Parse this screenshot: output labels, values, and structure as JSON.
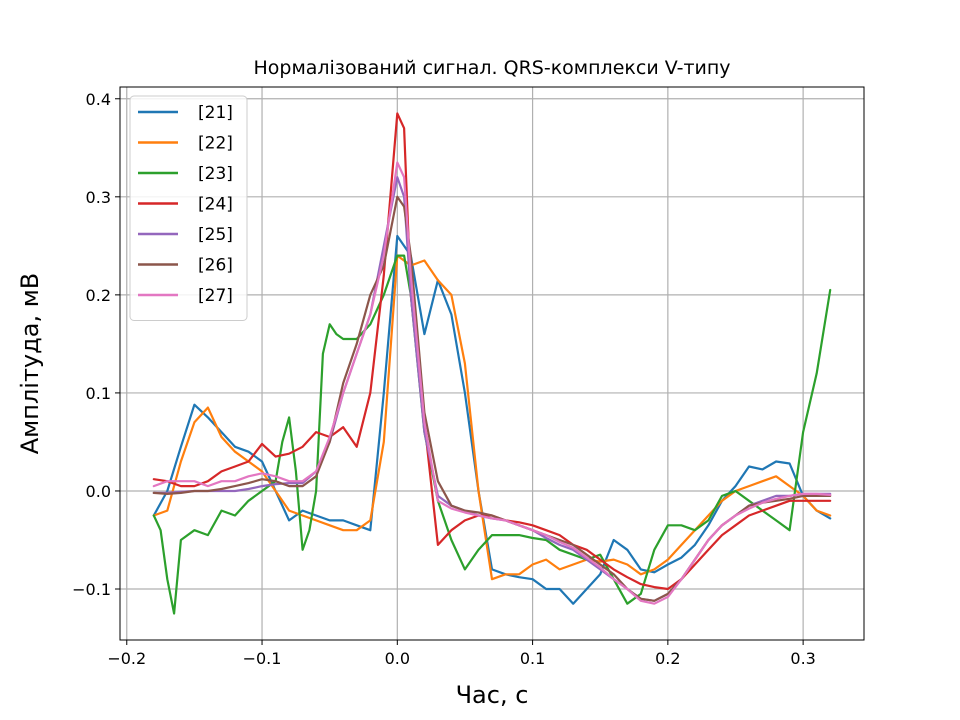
{
  "chart_data": {
    "type": "line",
    "title": "Нормалізований сигнал. QRS-комплекси V-типу",
    "xlabel": "Час, с",
    "ylabel": "Амплітуда, мВ",
    "xlim": [
      -0.205,
      0.345
    ],
    "ylim": [
      -0.152,
      0.412
    ],
    "xticks": [
      -0.2,
      -0.1,
      0.0,
      0.1,
      0.2,
      0.3
    ],
    "xtick_labels": [
      "−0.2",
      "−0.1",
      "0.0",
      "0.1",
      "0.2",
      "0.3"
    ],
    "yticks": [
      -0.1,
      0.0,
      0.1,
      0.2,
      0.3,
      0.4
    ],
    "ytick_labels": [
      "−0.1",
      "0.0",
      "0.1",
      "0.2",
      "0.3",
      "0.4"
    ],
    "grid": true,
    "legend": "top-left",
    "series": [
      {
        "name": "[21]",
        "color": "#1f77b4",
        "x": [
          -0.18,
          -0.17,
          -0.16,
          -0.15,
          -0.14,
          -0.13,
          -0.12,
          -0.11,
          -0.1,
          -0.09,
          -0.08,
          -0.07,
          -0.06,
          -0.05,
          -0.04,
          -0.03,
          -0.02,
          -0.01,
          0.0,
          0.01,
          0.02,
          0.03,
          0.04,
          0.05,
          0.06,
          0.07,
          0.08,
          0.09,
          0.1,
          0.11,
          0.12,
          0.13,
          0.14,
          0.15,
          0.16,
          0.17,
          0.18,
          0.19,
          0.2,
          0.21,
          0.22,
          0.23,
          0.24,
          0.25,
          0.26,
          0.27,
          0.28,
          0.29,
          0.3,
          0.31,
          0.32
        ],
        "y": [
          -0.025,
          0.0,
          0.045,
          0.088,
          0.075,
          0.06,
          0.045,
          0.04,
          0.03,
          0.0,
          -0.03,
          -0.02,
          -0.025,
          -0.03,
          -0.03,
          -0.035,
          -0.04,
          0.1,
          0.26,
          0.24,
          0.16,
          0.215,
          0.18,
          0.1,
          0.0,
          -0.08,
          -0.085,
          -0.088,
          -0.09,
          -0.1,
          -0.1,
          -0.115,
          -0.1,
          -0.085,
          -0.05,
          -0.06,
          -0.08,
          -0.083,
          -0.075,
          -0.068,
          -0.055,
          -0.035,
          -0.01,
          0.005,
          0.025,
          0.022,
          0.03,
          0.028,
          -0.005,
          -0.02,
          -0.028
        ]
      },
      {
        "name": "[22]",
        "color": "#ff7f0e",
        "x": [
          -0.18,
          -0.17,
          -0.16,
          -0.15,
          -0.14,
          -0.13,
          -0.12,
          -0.11,
          -0.1,
          -0.09,
          -0.08,
          -0.07,
          -0.06,
          -0.05,
          -0.04,
          -0.03,
          -0.02,
          -0.01,
          0.0,
          0.01,
          0.02,
          0.03,
          0.04,
          0.05,
          0.06,
          0.07,
          0.08,
          0.09,
          0.1,
          0.11,
          0.12,
          0.13,
          0.14,
          0.15,
          0.16,
          0.17,
          0.18,
          0.19,
          0.2,
          0.21,
          0.22,
          0.23,
          0.24,
          0.25,
          0.26,
          0.27,
          0.28,
          0.29,
          0.3,
          0.31,
          0.32
        ],
        "y": [
          -0.025,
          -0.02,
          0.03,
          0.07,
          0.085,
          0.055,
          0.04,
          0.03,
          0.02,
          0.0,
          -0.02,
          -0.025,
          -0.03,
          -0.035,
          -0.04,
          -0.04,
          -0.03,
          0.05,
          0.24,
          0.23,
          0.235,
          0.215,
          0.2,
          0.13,
          0.0,
          -0.09,
          -0.085,
          -0.085,
          -0.075,
          -0.07,
          -0.08,
          -0.075,
          -0.07,
          -0.072,
          -0.07,
          -0.075,
          -0.085,
          -0.08,
          -0.07,
          -0.055,
          -0.04,
          -0.025,
          -0.01,
          0.0,
          0.005,
          0.01,
          0.015,
          0.005,
          -0.005,
          -0.02,
          -0.025
        ]
      },
      {
        "name": "[23]",
        "color": "#2ca02c",
        "x": [
          -0.18,
          -0.175,
          -0.17,
          -0.165,
          -0.16,
          -0.15,
          -0.14,
          -0.13,
          -0.12,
          -0.11,
          -0.1,
          -0.09,
          -0.085,
          -0.08,
          -0.075,
          -0.07,
          -0.065,
          -0.06,
          -0.055,
          -0.05,
          -0.045,
          -0.04,
          -0.03,
          -0.02,
          -0.01,
          0.0,
          0.005,
          0.01,
          0.02,
          0.03,
          0.04,
          0.05,
          0.06,
          0.07,
          0.08,
          0.09,
          0.1,
          0.11,
          0.12,
          0.13,
          0.14,
          0.15,
          0.16,
          0.17,
          0.18,
          0.19,
          0.2,
          0.21,
          0.22,
          0.23,
          0.24,
          0.25,
          0.26,
          0.27,
          0.28,
          0.29,
          0.3,
          0.31,
          0.32
        ],
        "y": [
          -0.025,
          -0.04,
          -0.09,
          -0.125,
          -0.05,
          -0.04,
          -0.045,
          -0.02,
          -0.025,
          -0.01,
          0.0,
          0.01,
          0.05,
          0.075,
          0.02,
          -0.06,
          -0.04,
          0.0,
          0.14,
          0.17,
          0.16,
          0.155,
          0.155,
          0.17,
          0.2,
          0.24,
          0.24,
          0.2,
          0.06,
          -0.01,
          -0.05,
          -0.08,
          -0.06,
          -0.045,
          -0.045,
          -0.045,
          -0.048,
          -0.05,
          -0.06,
          -0.065,
          -0.07,
          -0.065,
          -0.09,
          -0.115,
          -0.105,
          -0.06,
          -0.035,
          -0.035,
          -0.04,
          -0.03,
          -0.005,
          0.0,
          -0.01,
          -0.02,
          -0.03,
          -0.04,
          0.06,
          0.12,
          0.205
        ]
      },
      {
        "name": "[24]",
        "color": "#d62728",
        "x": [
          -0.18,
          -0.17,
          -0.16,
          -0.15,
          -0.14,
          -0.13,
          -0.12,
          -0.11,
          -0.1,
          -0.09,
          -0.08,
          -0.07,
          -0.06,
          -0.05,
          -0.04,
          -0.03,
          -0.02,
          -0.01,
          0.0,
          0.005,
          0.01,
          0.02,
          0.03,
          0.04,
          0.05,
          0.06,
          0.07,
          0.08,
          0.09,
          0.1,
          0.11,
          0.12,
          0.13,
          0.14,
          0.15,
          0.16,
          0.17,
          0.18,
          0.19,
          0.2,
          0.21,
          0.22,
          0.23,
          0.24,
          0.25,
          0.26,
          0.27,
          0.28,
          0.29,
          0.3,
          0.31,
          0.32
        ],
        "y": [
          0.012,
          0.01,
          0.005,
          0.005,
          0.01,
          0.02,
          0.025,
          0.03,
          0.048,
          0.035,
          0.038,
          0.045,
          0.06,
          0.055,
          0.065,
          0.045,
          0.1,
          0.22,
          0.385,
          0.37,
          0.2,
          0.07,
          -0.055,
          -0.04,
          -0.03,
          -0.025,
          -0.025,
          -0.03,
          -0.032,
          -0.035,
          -0.04,
          -0.045,
          -0.055,
          -0.06,
          -0.07,
          -0.08,
          -0.088,
          -0.095,
          -0.098,
          -0.1,
          -0.09,
          -0.075,
          -0.06,
          -0.045,
          -0.035,
          -0.025,
          -0.02,
          -0.015,
          -0.01,
          -0.01,
          -0.01,
          -0.01
        ]
      },
      {
        "name": "[25]",
        "color": "#9467bd",
        "x": [
          -0.18,
          -0.17,
          -0.16,
          -0.15,
          -0.14,
          -0.13,
          -0.12,
          -0.11,
          -0.1,
          -0.09,
          -0.08,
          -0.07,
          -0.06,
          -0.05,
          -0.04,
          -0.03,
          -0.02,
          -0.01,
          0.0,
          0.005,
          0.01,
          0.02,
          0.03,
          0.04,
          0.05,
          0.06,
          0.07,
          0.08,
          0.09,
          0.1,
          0.11,
          0.12,
          0.13,
          0.14,
          0.15,
          0.16,
          0.17,
          0.18,
          0.19,
          0.2,
          0.21,
          0.22,
          0.23,
          0.24,
          0.25,
          0.26,
          0.27,
          0.28,
          0.29,
          0.3,
          0.31,
          0.32
        ],
        "y": [
          -0.002,
          -0.002,
          -0.001,
          0.0,
          0.0,
          0.0,
          0.0,
          0.002,
          0.005,
          0.007,
          0.008,
          0.008,
          0.02,
          0.05,
          0.1,
          0.14,
          0.18,
          0.25,
          0.32,
          0.3,
          0.2,
          0.06,
          -0.005,
          -0.015,
          -0.02,
          -0.025,
          -0.028,
          -0.03,
          -0.035,
          -0.04,
          -0.048,
          -0.055,
          -0.06,
          -0.07,
          -0.08,
          -0.09,
          -0.1,
          -0.11,
          -0.112,
          -0.105,
          -0.09,
          -0.07,
          -0.05,
          -0.035,
          -0.025,
          -0.015,
          -0.01,
          -0.005,
          -0.005,
          -0.003,
          -0.003,
          -0.003
        ]
      },
      {
        "name": "[26]",
        "color": "#8c564b",
        "x": [
          -0.18,
          -0.17,
          -0.16,
          -0.15,
          -0.14,
          -0.13,
          -0.12,
          -0.11,
          -0.1,
          -0.09,
          -0.08,
          -0.07,
          -0.06,
          -0.05,
          -0.04,
          -0.03,
          -0.02,
          -0.01,
          0.0,
          0.005,
          0.01,
          0.02,
          0.03,
          0.04,
          0.05,
          0.06,
          0.07,
          0.08,
          0.09,
          0.1,
          0.11,
          0.12,
          0.13,
          0.14,
          0.15,
          0.16,
          0.17,
          0.18,
          0.19,
          0.2,
          0.21,
          0.22,
          0.23,
          0.24,
          0.25,
          0.26,
          0.27,
          0.28,
          0.29,
          0.3,
          0.31,
          0.32
        ],
        "y": [
          -0.002,
          -0.003,
          -0.002,
          0.0,
          0.0,
          0.002,
          0.005,
          0.008,
          0.012,
          0.01,
          0.005,
          0.005,
          0.015,
          0.05,
          0.11,
          0.15,
          0.2,
          0.23,
          0.3,
          0.29,
          0.24,
          0.08,
          0.01,
          -0.015,
          -0.02,
          -0.022,
          -0.025,
          -0.03,
          -0.035,
          -0.04,
          -0.045,
          -0.05,
          -0.055,
          -0.065,
          -0.075,
          -0.085,
          -0.1,
          -0.11,
          -0.112,
          -0.105,
          -0.09,
          -0.07,
          -0.05,
          -0.035,
          -0.025,
          -0.015,
          -0.012,
          -0.01,
          -0.008,
          -0.005,
          -0.005,
          -0.005
        ]
      },
      {
        "name": "[27]",
        "color": "#e377c2",
        "x": [
          -0.18,
          -0.17,
          -0.16,
          -0.15,
          -0.14,
          -0.13,
          -0.12,
          -0.11,
          -0.1,
          -0.09,
          -0.08,
          -0.07,
          -0.06,
          -0.05,
          -0.04,
          -0.03,
          -0.02,
          -0.01,
          0.0,
          0.005,
          0.01,
          0.02,
          0.03,
          0.04,
          0.05,
          0.06,
          0.07,
          0.08,
          0.09,
          0.1,
          0.11,
          0.12,
          0.13,
          0.14,
          0.15,
          0.16,
          0.17,
          0.18,
          0.19,
          0.2,
          0.21,
          0.22,
          0.23,
          0.24,
          0.25,
          0.26,
          0.27,
          0.28,
          0.29,
          0.3,
          0.31,
          0.32
        ],
        "y": [
          0.005,
          0.01,
          0.01,
          0.01,
          0.005,
          0.01,
          0.01,
          0.015,
          0.018,
          0.015,
          0.01,
          0.01,
          0.02,
          0.055,
          0.1,
          0.14,
          0.18,
          0.24,
          0.335,
          0.32,
          0.22,
          0.07,
          -0.01,
          -0.018,
          -0.022,
          -0.025,
          -0.028,
          -0.03,
          -0.035,
          -0.04,
          -0.045,
          -0.052,
          -0.058,
          -0.068,
          -0.078,
          -0.09,
          -0.1,
          -0.112,
          -0.115,
          -0.108,
          -0.09,
          -0.07,
          -0.05,
          -0.035,
          -0.025,
          -0.018,
          -0.012,
          -0.008,
          -0.005,
          -0.003,
          -0.003,
          -0.004
        ]
      }
    ]
  }
}
